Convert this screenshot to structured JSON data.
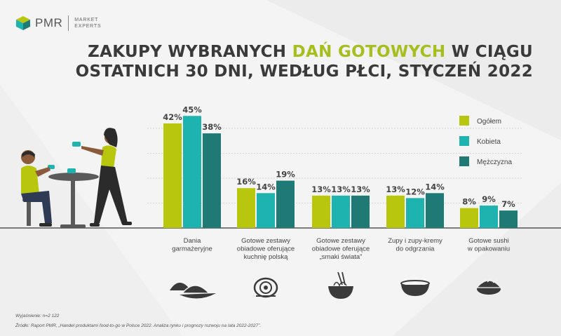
{
  "brand": {
    "name": "PMR",
    "tagline_line1": "MARKET",
    "tagline_line2": "EXPERTS"
  },
  "title": {
    "line1_prefix": "ZAKUPY WYBRANYCH ",
    "line1_highlight": "DAŃ GOTOWYCH",
    "line1_suffix": " W CIĄGU",
    "line2": "OSTATNICH 30 DNI, WEDŁUG PŁCI, STYCZEŃ 2022"
  },
  "footnotes": {
    "explanation": "Wyjaśnienie: n=2 122",
    "source": "Źródło: Raport PMR, „Handel produktami food-to-go w Polsce 2022. Analiza rynku i prognozy rozwoju na lata 2022-2027”."
  },
  "colors": {
    "ogolem": "#b8c70d",
    "kobieta": "#1fb3b0",
    "mezczyzna": "#1f7a75",
    "accent": "#a6bf1e"
  },
  "chart_data": {
    "type": "bar",
    "categories": [
      [
        "Dania",
        "garmażeryjne"
      ],
      [
        "Gotowe zestawy",
        "obiadowe oferujące",
        "kuchnię polską"
      ],
      [
        "Gotowe zestawy",
        "obiadowe oferujące",
        "„smaki świata”"
      ],
      [
        "Zupy i zupy-kremy",
        "do odgrzania"
      ],
      [
        "Gotowe sushi",
        "w opakowaniu"
      ]
    ],
    "category_icons": [
      "dumplings-icon",
      "pasta-plate-icon",
      "noodle-bowl-icon",
      "soup-bowl-icon",
      "sushi-icon"
    ],
    "series": [
      {
        "name": "Ogółem",
        "values": [
          42,
          16,
          13,
          13,
          8
        ]
      },
      {
        "name": "Kobieta",
        "values": [
          45,
          14,
          13,
          12,
          9
        ]
      },
      {
        "name": "Mężczyzna",
        "values": [
          38,
          19,
          13,
          14,
          7
        ]
      }
    ],
    "value_suffix": "%",
    "ylim": [
      0,
      50
    ],
    "legend_position": "right"
  }
}
